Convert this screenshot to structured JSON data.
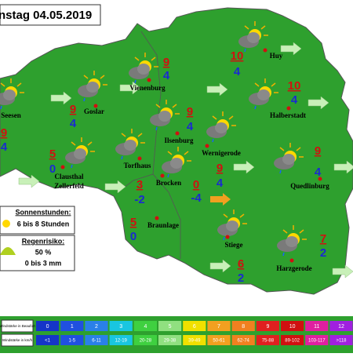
{
  "title": "nstag 04.05.2019",
  "cities": [
    {
      "name_lines": [
        "Seesen"
      ],
      "max": 9,
      "min": 4
    },
    {
      "name_lines": [
        "Goslar"
      ],
      "max": 9,
      "min": 4
    },
    {
      "name_lines": [
        "Vienenburg"
      ],
      "max": 9,
      "min": 4
    },
    {
      "name_lines": [
        "Huy"
      ],
      "max": 10,
      "min": 4
    },
    {
      "name_lines": [
        "Halberstadt"
      ],
      "max": 10,
      "min": 4
    },
    {
      "name_lines": [
        "Ilsenburg"
      ],
      "max": 9,
      "min": 4
    },
    {
      "name_lines": [
        "Wernigerode"
      ],
      "max": 9,
      "min": 4
    },
    {
      "name_lines": [
        "Clausthal",
        "Zellerfeld"
      ],
      "max": 5,
      "min": 0
    },
    {
      "name_lines": [
        "Torfhaus"
      ],
      "max": 3,
      "min": -2
    },
    {
      "name_lines": [
        "Brocken"
      ],
      "max": 0,
      "min": -4
    },
    {
      "name_lines": [
        "Quedlinburg"
      ],
      "max": 9,
      "min": 4
    },
    {
      "name_lines": [
        "Braunlage"
      ],
      "max": 5,
      "min": 0
    },
    {
      "name_lines": [
        "Stiege"
      ],
      "max": 6,
      "min": 2
    },
    {
      "name_lines": [
        "Harzgerode"
      ],
      "max": 7,
      "min": 2
    }
  ],
  "sunshine": {
    "label": "Sonnenstunden:",
    "value": "6 bis 8 Stunden"
  },
  "rain": {
    "label": "Regenrisiko:",
    "probability": "50 %",
    "amount": "0 bis 3 mm"
  },
  "legend": {
    "beaufort_label": "Windstärke in Beaufort",
    "kmh_label": "Windstärke in km/h",
    "levels": [
      {
        "bft": 0,
        "kmh": "<1",
        "color": "#1535c8"
      },
      {
        "bft": 1,
        "kmh": "1-5",
        "color": "#2050e0"
      },
      {
        "bft": 2,
        "kmh": "6-11",
        "color": "#2a80e8"
      },
      {
        "bft": 3,
        "kmh": "12-19",
        "color": "#19c6e0"
      },
      {
        "bft": 4,
        "kmh": "20-28",
        "color": "#3fd040"
      },
      {
        "bft": 5,
        "kmh": "29-38",
        "color": "#90e080"
      },
      {
        "bft": 6,
        "kmh": "39-49",
        "color": "#f0e000"
      },
      {
        "bft": 7,
        "kmh": "50-61",
        "color": "#f2a020"
      },
      {
        "bft": 8,
        "kmh": "62-74",
        "color": "#f08020"
      },
      {
        "bft": 9,
        "kmh": "75-88",
        "color": "#e02020"
      },
      {
        "bft": 10,
        "kmh": "89-102",
        "color": "#d01010"
      },
      {
        "bft": 11,
        "kmh": "103-117",
        "color": "#e020a0"
      },
      {
        "bft": 12,
        "kmh": ">118",
        "color": "#a020e0"
      }
    ]
  }
}
